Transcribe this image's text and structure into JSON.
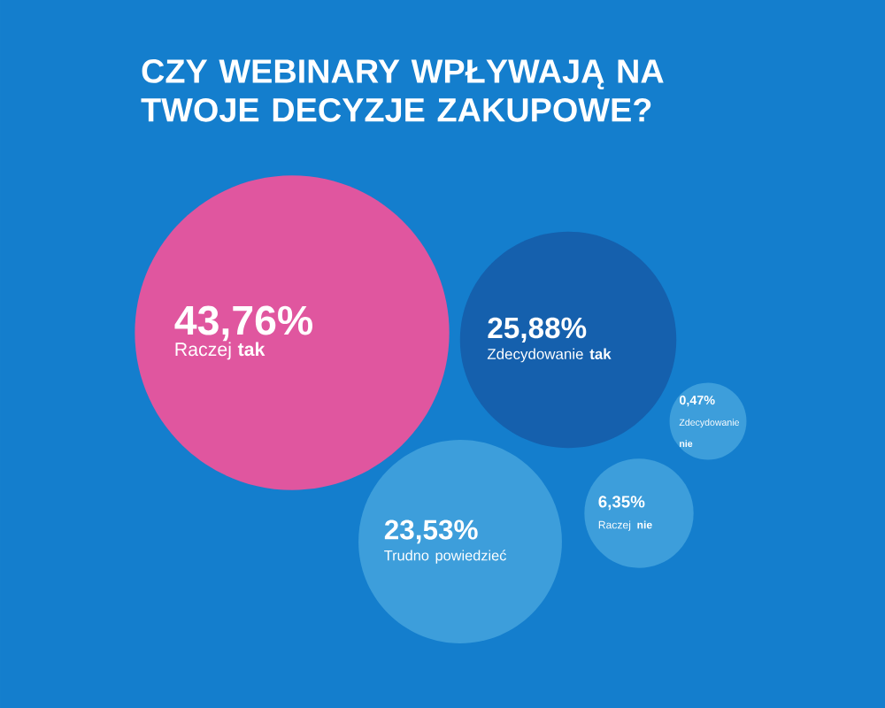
{
  "chart_data": {
    "type": "other",
    "title": "CZY WEBINARY WPŁYWAJĄ NA TWOJE DECYZJE ZAKUPOWE?",
    "categories": [
      "Raczej **tak**",
      "Zdecydowanie **tak**",
      "Trudno powiedzieć",
      "Raczej **nie**",
      "Zdecydowanie **nie**"
    ],
    "values": [
      43.76,
      25.88,
      23.53,
      6.35,
      0.47
    ],
    "value_labels": [
      "43,76%",
      "25,88%",
      "23,53%",
      "6,35%",
      "0,47%"
    ],
    "colors": [
      "#e0569f",
      "#1560ad",
      "#3d9edb",
      "#3d9edb",
      "#3d9edb"
    ]
  }
}
